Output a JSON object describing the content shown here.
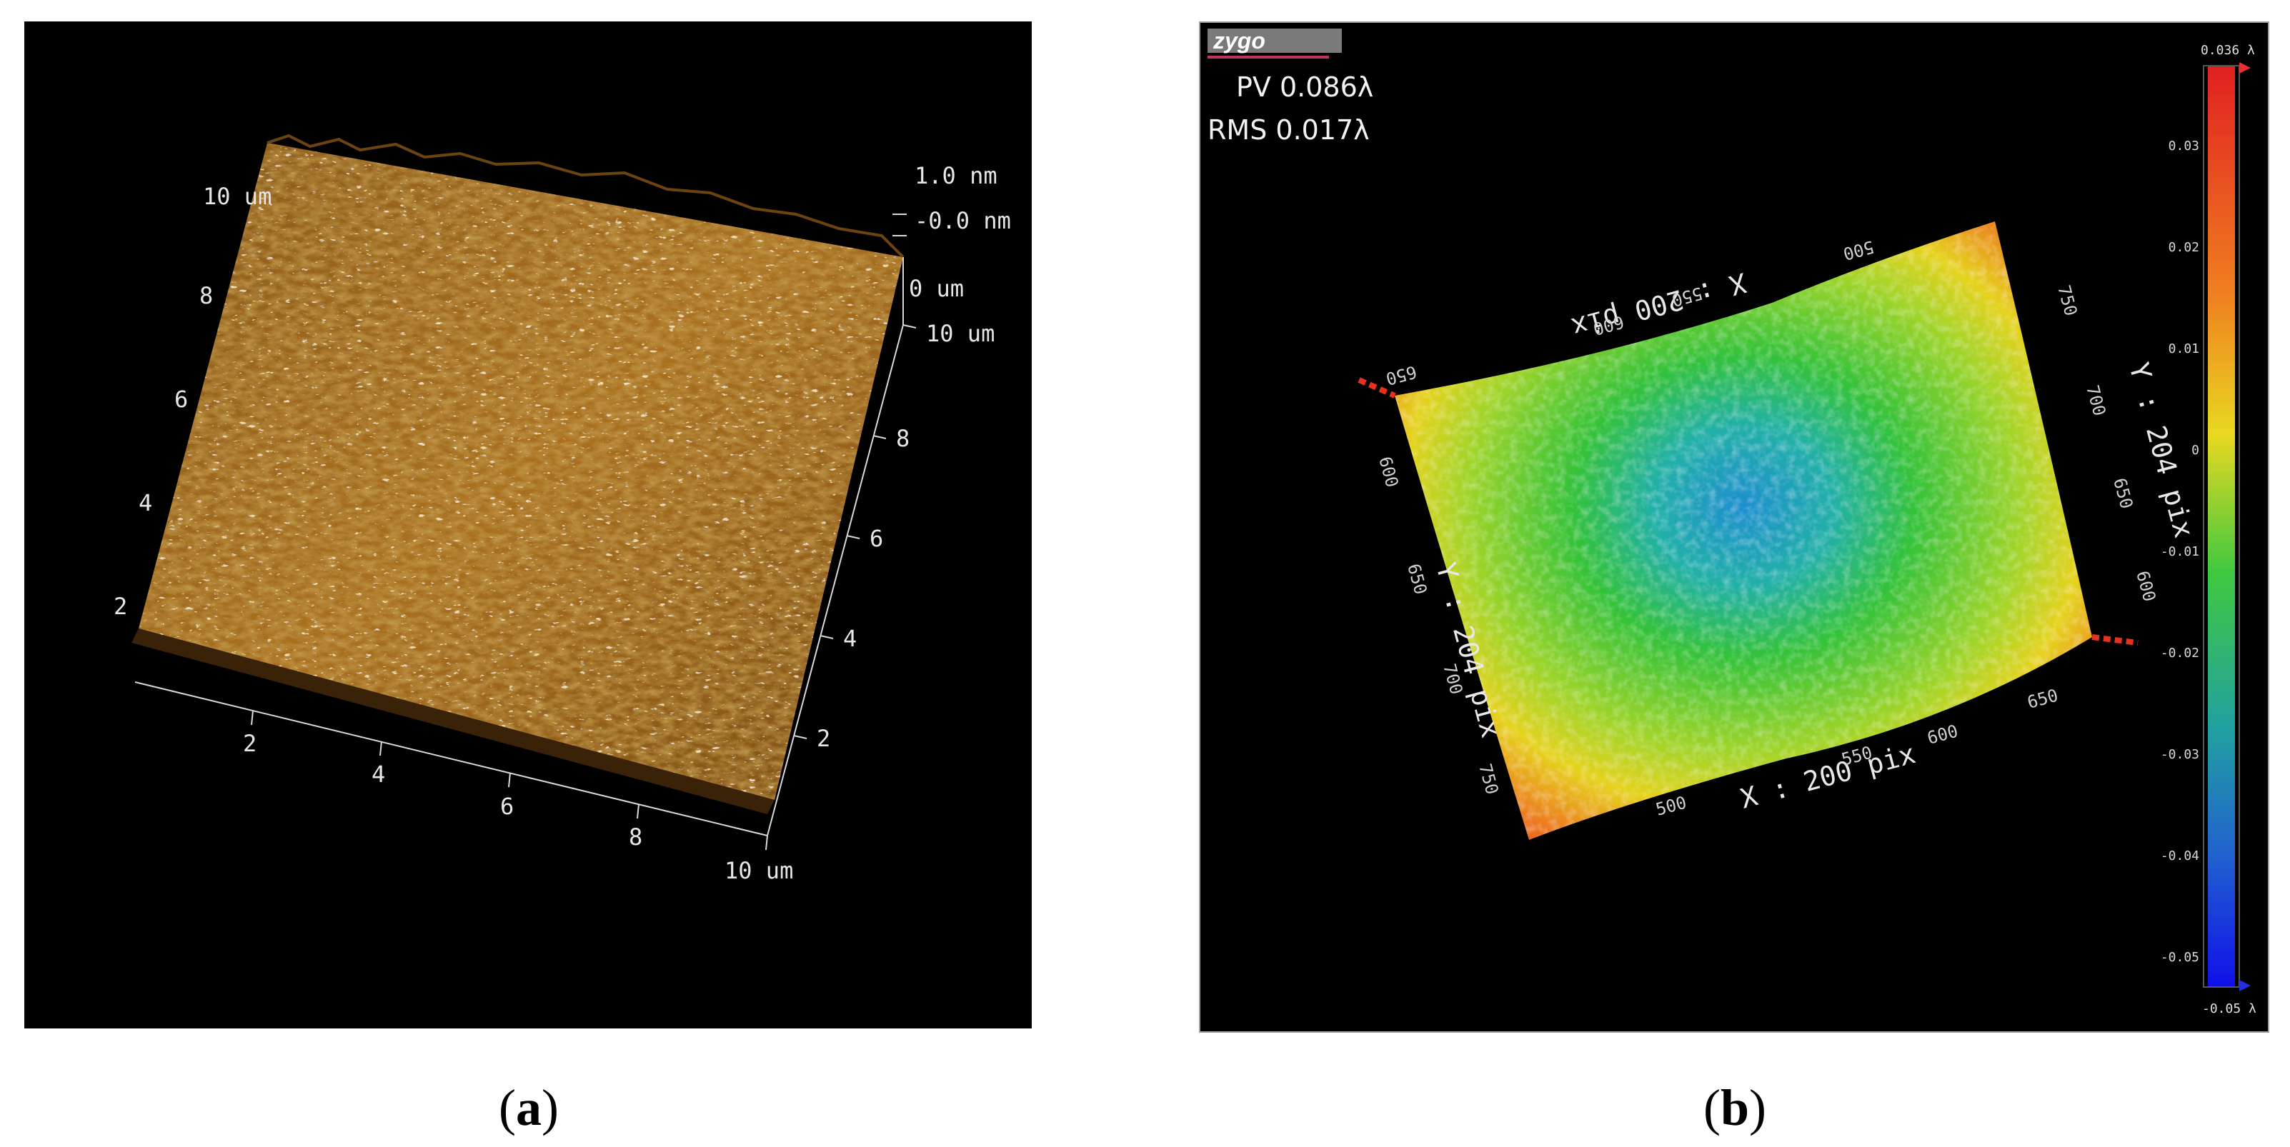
{
  "panel_a": {
    "caption_letter": "a",
    "z_labels": [
      "1.0 nm",
      "-0.0 nm",
      "0 um"
    ],
    "left_axis_ticks": [
      "10 um",
      "8",
      "6",
      "4",
      "2"
    ],
    "right_axis_ticks": [
      "10 um",
      "8",
      "6",
      "4",
      "2"
    ],
    "bottom_axis_ticks": [
      "2",
      "4",
      "6",
      "8",
      "10 um"
    ]
  },
  "panel_b": {
    "caption_letter": "b",
    "logo": "zygo",
    "pv_text": "PV 0.086λ",
    "rms_text": "RMS 0.017λ",
    "colorbar_top": "0.036 λ",
    "colorbar_bottom": "-0.05 λ",
    "colorbar_ticks": [
      "0.03",
      "0.02",
      "0.01",
      "0",
      "-0.01",
      "-0.02",
      "-0.03",
      "-0.04",
      "-0.05"
    ],
    "x_axis_label": "X : 200 pix",
    "y_axis_label": "Y : 204 pix",
    "x_ticks_bottom": [
      "500",
      "550",
      "600",
      "650"
    ],
    "y_ticks_left": [
      "600",
      "650",
      "700",
      "750"
    ],
    "x_ticks_top": [
      "500",
      "550",
      "600",
      "650"
    ],
    "y_ticks_right": [
      "600",
      "650",
      "700",
      "750"
    ],
    "colors": {
      "red": "#e8241c",
      "yellow": "#e6d21e",
      "green": "#35c43a",
      "cyan": "#1f9fb8",
      "blue": "#1030e0"
    }
  }
}
